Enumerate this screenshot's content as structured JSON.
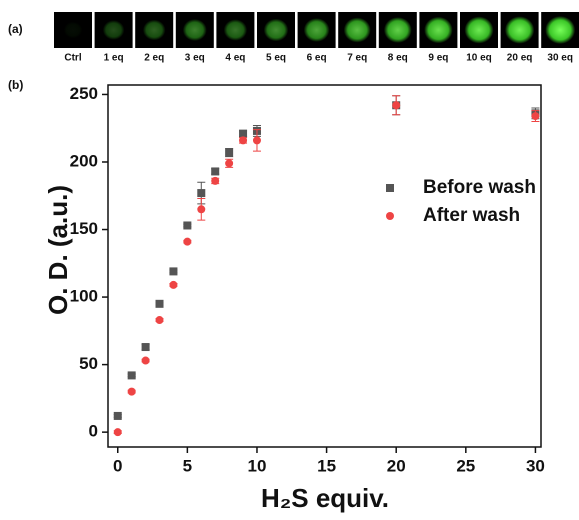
{
  "panel_a": {
    "label": "(a)",
    "images": [
      "Ctrl",
      "1 eq",
      "2 eq",
      "3 eq",
      "4 eq",
      "5 eq",
      "6 eq",
      "7 eq",
      "8 eq",
      "9 eq",
      "10 eq",
      "20 eq",
      "30 eq"
    ]
  },
  "panel_b_label": "(b)",
  "chart_data": {
    "type": "scatter",
    "xlabel": "H₂S equiv.",
    "ylabel": "O. D. (a.u.)",
    "x": [
      0,
      1,
      2,
      3,
      4,
      5,
      6,
      7,
      8,
      9,
      10,
      20,
      30
    ],
    "series": [
      {
        "name": "Before wash",
        "color": "#555555",
        "marker": "square",
        "values": [
          12,
          42,
          63,
          95,
          119,
          153,
          177,
          193,
          207,
          221,
          223,
          242,
          236
        ],
        "errors": [
          1,
          1,
          2,
          1,
          1,
          1,
          8,
          2,
          3,
          2,
          4,
          7,
          4
        ]
      },
      {
        "name": "After wash",
        "color": "#ee4444",
        "marker": "circle",
        "values": [
          0,
          30,
          53,
          83,
          109,
          141,
          165,
          186,
          199,
          216,
          216,
          242,
          234
        ],
        "errors": [
          1,
          1,
          1,
          1,
          1,
          1,
          8,
          2,
          3,
          2,
          8,
          7,
          4
        ]
      }
    ],
    "xlim": [
      -0.7,
      30.4
    ],
    "ylim": [
      -11,
      257
    ],
    "xticks": [
      0,
      5,
      10,
      15,
      20,
      25,
      30
    ],
    "yticks": [
      0,
      50,
      100,
      150,
      200,
      250
    ],
    "legend": "right"
  }
}
